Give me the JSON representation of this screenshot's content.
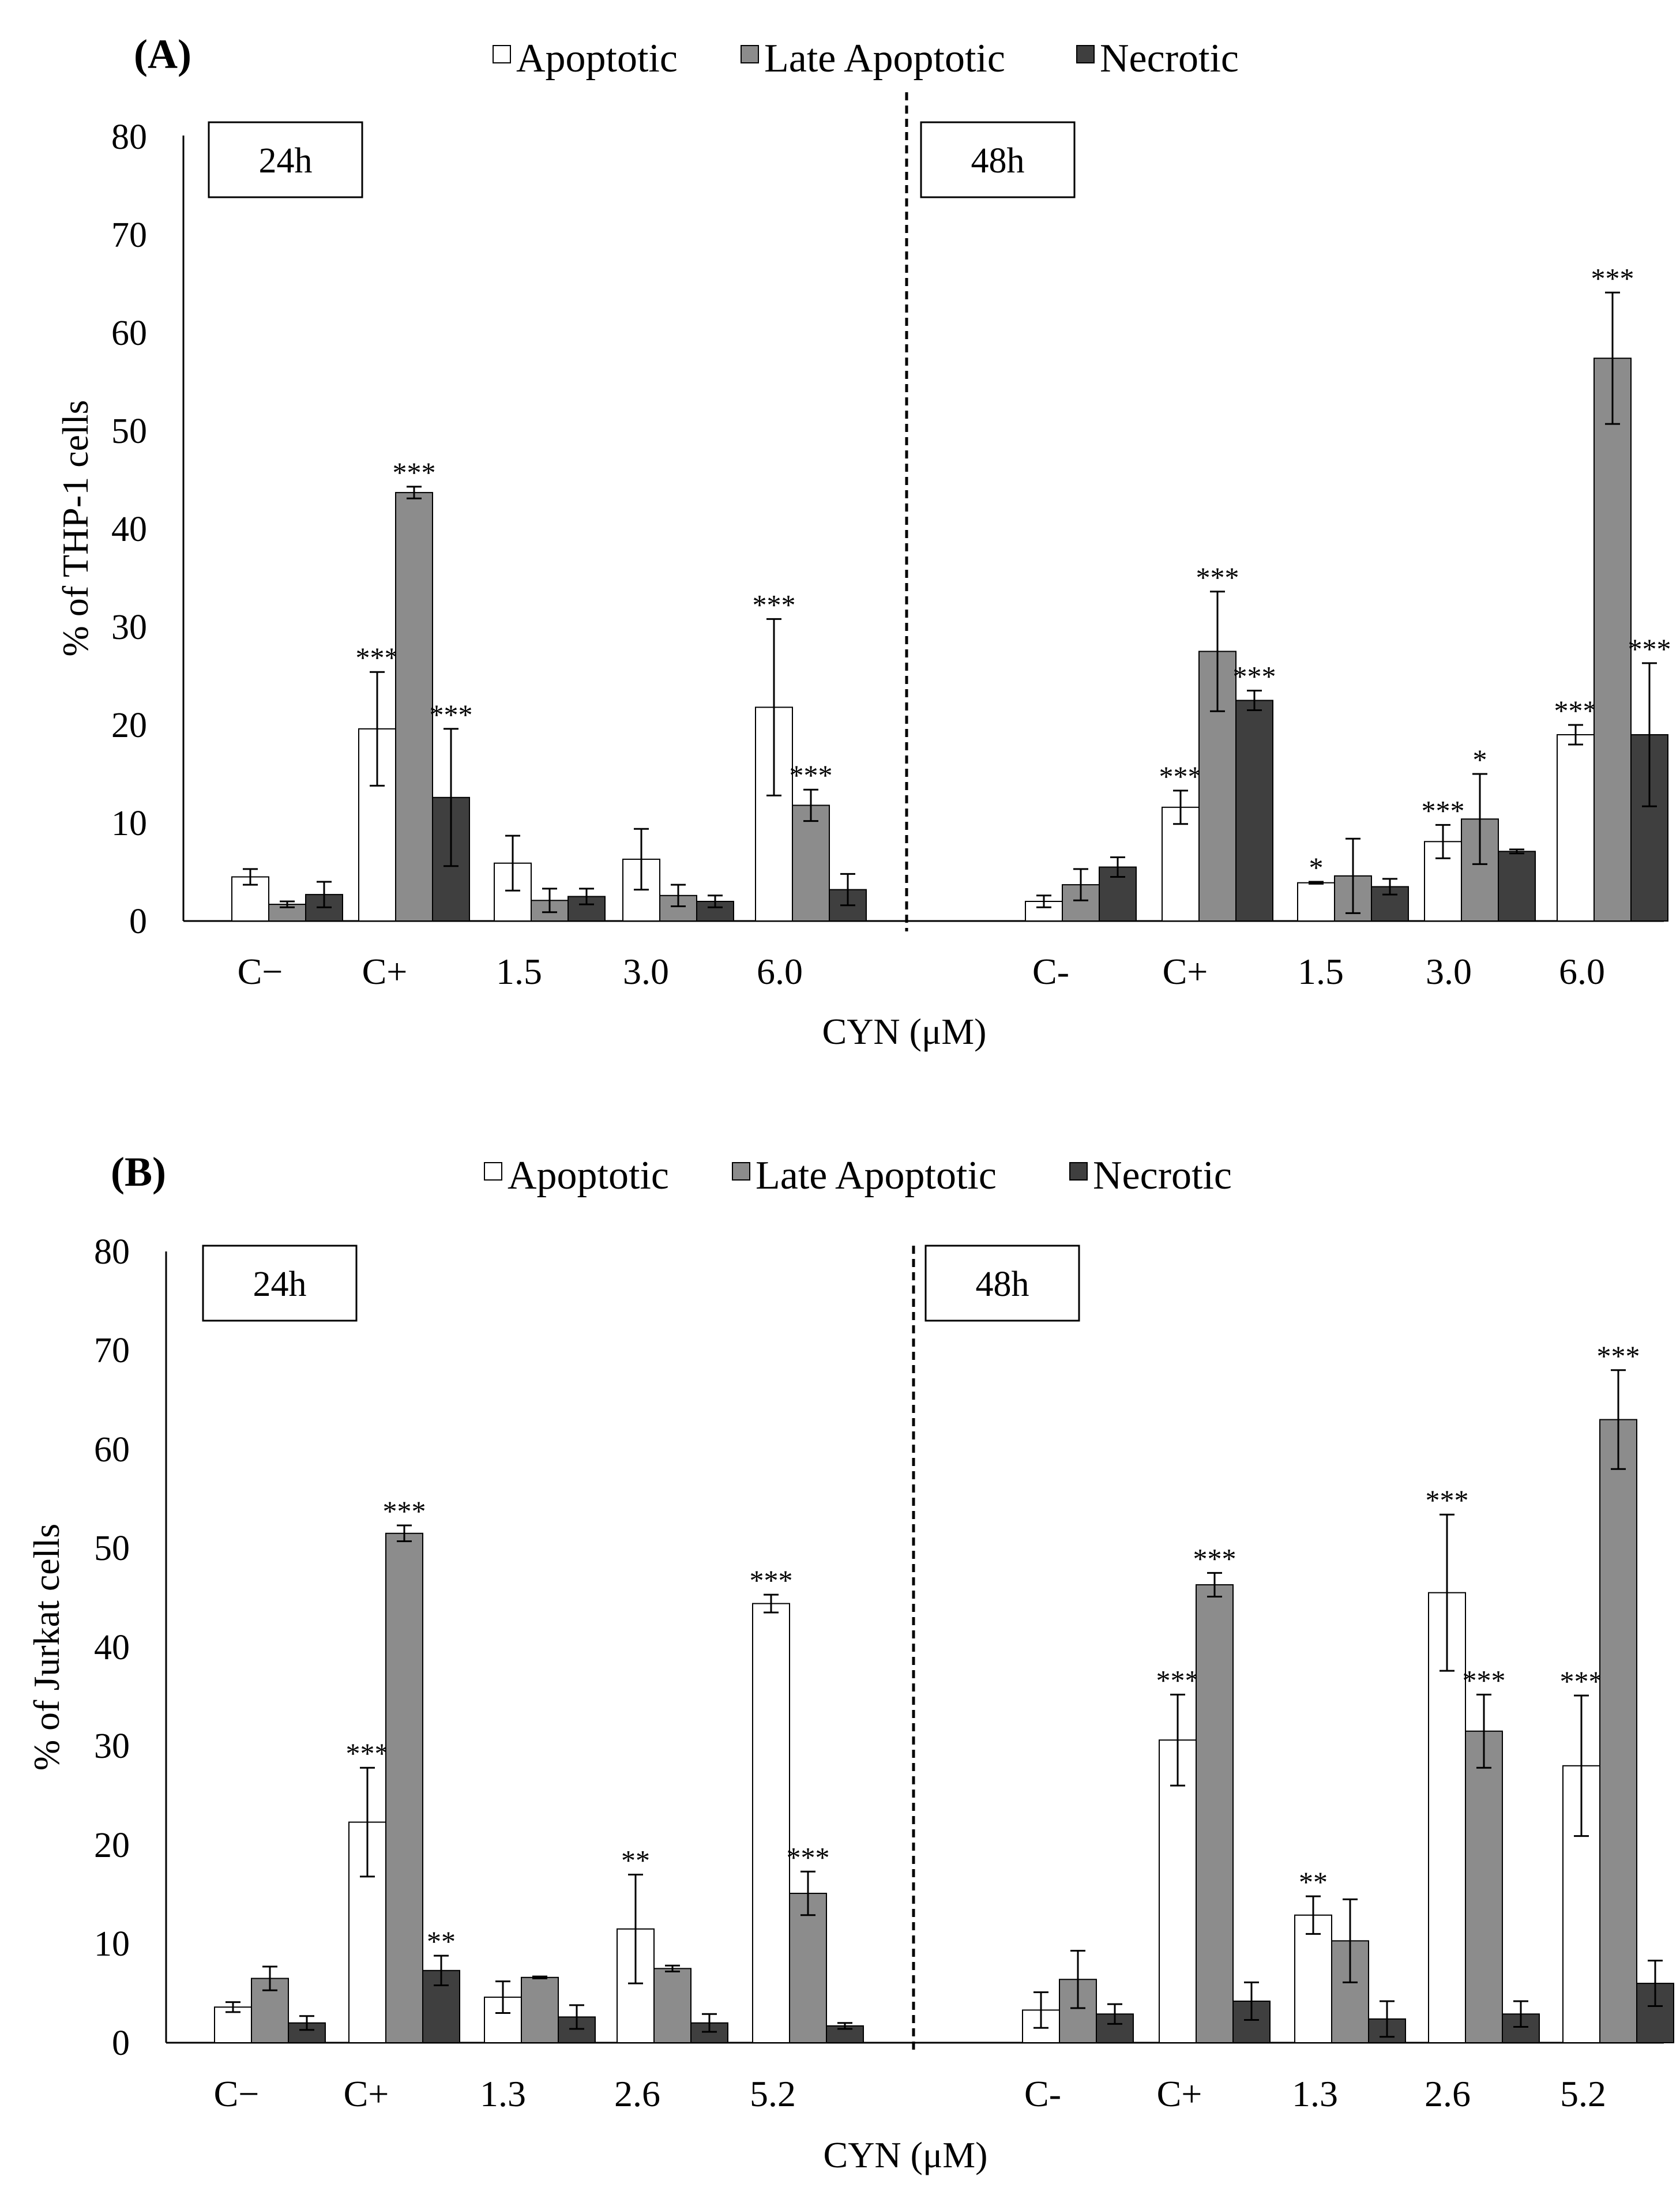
{
  "chart_data": [
    {
      "type": "bar",
      "panel": "(A)",
      "ylabel": "% of THP-1 cells",
      "xlabel": "CYN (μM)",
      "ylim": [
        0,
        80
      ],
      "yticks": [
        "0",
        "10",
        "20",
        "30",
        "40",
        "50",
        "60",
        "70",
        "80"
      ],
      "legend": [
        "Apoptotic",
        "Late Apoptotic",
        "Necrotic"
      ],
      "colors": {
        "apoptotic": "#ffffff",
        "late": "#8c8c8c",
        "necrotic": "#3f3f3f"
      },
      "groups": [
        {
          "time": "24h",
          "categories": [
            "C−",
            "C+",
            "1.5",
            "3.0",
            "6.0"
          ],
          "series": [
            {
              "name": "Apoptotic",
              "values": [
                4.5,
                19.6,
                5.9,
                6.3,
                21.8
              ],
              "errors": [
                0.8,
                5.8,
                2.8,
                3.1,
                9.0
              ],
              "sig": [
                "",
                "***",
                "",
                "",
                "***"
              ]
            },
            {
              "name": "Late Apoptotic",
              "values": [
                1.7,
                43.7,
                2.1,
                2.6,
                11.8
              ],
              "errors": [
                0.3,
                0.6,
                1.2,
                1.1,
                1.6
              ],
              "sig": [
                "",
                "***",
                "",
                "",
                "***"
              ]
            },
            {
              "name": "Necrotic",
              "values": [
                2.7,
                12.6,
                2.5,
                2.0,
                3.2
              ],
              "errors": [
                1.3,
                7.0,
                0.8,
                0.6,
                1.6
              ],
              "sig": [
                "",
                "***",
                "",
                "",
                ""
              ]
            }
          ]
        },
        {
          "time": "48h",
          "categories": [
            "C-",
            "C+",
            "1.5",
            "3.0",
            "6.0"
          ],
          "series": [
            {
              "name": "Apoptotic",
              "values": [
                2.0,
                11.6,
                3.9,
                8.1,
                19.0
              ],
              "errors": [
                0.6,
                1.7,
                0.1,
                1.7,
                1.0
              ],
              "sig": [
                "",
                "***",
                "*",
                "***",
                "***"
              ]
            },
            {
              "name": "Late Apoptotic",
              "values": [
                3.7,
                27.5,
                4.6,
                10.4,
                57.4
              ],
              "errors": [
                1.6,
                6.1,
                3.8,
                4.6,
                6.7
              ],
              "sig": [
                "",
                "***",
                "",
                "*",
                "***"
              ]
            },
            {
              "name": "Necrotic",
              "values": [
                5.5,
                22.5,
                3.5,
                7.1,
                19.0
              ],
              "errors": [
                1.0,
                1.0,
                0.8,
                0.2,
                7.3
              ],
              "sig": [
                "",
                "***",
                "",
                "",
                "***"
              ]
            }
          ]
        }
      ]
    },
    {
      "type": "bar",
      "panel": "(B)",
      "ylabel": "% of Jurkat cells",
      "xlabel": "CYN (μM)",
      "ylim": [
        0,
        80
      ],
      "yticks": [
        "0",
        "10",
        "20",
        "30",
        "40",
        "50",
        "60",
        "70",
        "80"
      ],
      "legend": [
        "Apoptotic",
        "Late Apoptotic",
        "Necrotic"
      ],
      "colors": {
        "apoptotic": "#ffffff",
        "late": "#8c8c8c",
        "necrotic": "#3f3f3f"
      },
      "groups": [
        {
          "time": "24h",
          "categories": [
            "C−",
            "C+",
            "1.3",
            "2.6",
            "5.2"
          ],
          "series": [
            {
              "name": "Apoptotic",
              "values": [
                3.6,
                22.3,
                4.6,
                11.5,
                44.4
              ],
              "errors": [
                0.5,
                5.5,
                1.6,
                5.5,
                0.9
              ],
              "sig": [
                "",
                "***",
                "",
                "**",
                "***"
              ]
            },
            {
              "name": "Late Apoptotic",
              "values": [
                6.5,
                51.5,
                6.6,
                7.5,
                15.1
              ],
              "errors": [
                1.2,
                0.8,
                0.1,
                0.3,
                2.2
              ],
              "sig": [
                "",
                "***",
                "",
                "",
                "***"
              ]
            },
            {
              "name": "Necrotic",
              "values": [
                2.0,
                7.3,
                2.6,
                2.0,
                1.7
              ],
              "errors": [
                0.7,
                1.5,
                1.2,
                0.9,
                0.3
              ],
              "sig": [
                "",
                "**",
                "",
                "",
                ""
              ]
            }
          ]
        },
        {
          "time": "48h",
          "categories": [
            "C-",
            "C+",
            "1.3",
            "2.6",
            "5.2"
          ],
          "series": [
            {
              "name": "Apoptotic",
              "values": [
                3.3,
                30.6,
                12.9,
                45.5,
                28.0
              ],
              "errors": [
                1.8,
                4.6,
                1.9,
                7.9,
                7.1
              ],
              "sig": [
                "",
                "***",
                "**",
                "***",
                "***"
              ]
            },
            {
              "name": "Late Apoptotic",
              "values": [
                6.4,
                46.3,
                10.3,
                31.5,
                63.0
              ],
              "errors": [
                2.9,
                1.2,
                4.2,
                3.7,
                5.0
              ],
              "sig": [
                "",
                "***",
                "",
                "***",
                "***"
              ]
            },
            {
              "name": "Necrotic",
              "values": [
                2.9,
                4.2,
                2.4,
                2.9,
                6.0
              ],
              "errors": [
                1.0,
                1.9,
                1.8,
                1.3,
                2.3
              ],
              "sig": [
                "",
                "",
                "",
                "",
                ""
              ]
            }
          ]
        }
      ]
    }
  ]
}
